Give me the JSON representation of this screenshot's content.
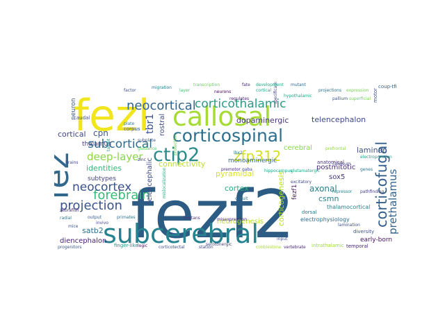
{
  "word_cloud": {
    "words": [
      {
        "text": "fezf2",
        "color": "#2c5c83"
      },
      {
        "text": "fezl",
        "color": "#f1e51d"
      },
      {
        "text": "fez",
        "color": "#31688e"
      },
      {
        "text": "subcerebral",
        "color": "#26828e"
      },
      {
        "text": "callosal",
        "color": "#a6db35"
      },
      {
        "text": "corticospinal",
        "color": "#2d6f8e"
      },
      {
        "text": "ctip2",
        "color": "#2c8a8b"
      },
      {
        "text": "corticothalamic",
        "color": "#2a9a86"
      },
      {
        "text": "neocortical",
        "color": "#32658d"
      },
      {
        "text": "corticofugal",
        "color": "#345f8d"
      },
      {
        "text": "zfp312",
        "color": "#d1e11c"
      },
      {
        "text": "subcortical",
        "color": "#2f6b8e"
      },
      {
        "text": "forebrain",
        "color": "#38b977"
      },
      {
        "text": "projection",
        "color": "#3a538b"
      },
      {
        "text": "neocortex",
        "color": "#3b518b"
      },
      {
        "text": "deep-layer",
        "color": "#8bd646"
      },
      {
        "text": "prethalamus",
        "color": "#33638d"
      },
      {
        "text": "tbr1",
        "color": "#3b528b"
      },
      {
        "text": "rostral",
        "color": "#3e4a89"
      },
      {
        "text": "telencephalon",
        "color": "#3e4989"
      },
      {
        "text": "dopaminergic",
        "color": "#46327e"
      },
      {
        "text": "cortical",
        "color": "#3f4788"
      },
      {
        "text": "cpn",
        "color": "#39558c"
      },
      {
        "text": "identities",
        "color": "#35b779"
      },
      {
        "text": "connectivity",
        "color": "#bade28"
      },
      {
        "text": "pyramidal",
        "color": "#d8e219"
      },
      {
        "text": "laminar",
        "color": "#3b528b"
      },
      {
        "text": "cerebral",
        "color": "#89d548"
      },
      {
        "text": "axonal",
        "color": "#27808e"
      },
      {
        "text": "cortex",
        "color": "#29af7f"
      },
      {
        "text": "corticogenesis",
        "color": "#b5de2b"
      },
      {
        "text": "monoaminergic",
        "color": "#31688e"
      },
      {
        "text": "postmitotic",
        "color": "#472d7b"
      },
      {
        "text": "fezf1",
        "color": "#48186a"
      },
      {
        "text": "telencephalic",
        "color": "#3e4a89"
      },
      {
        "text": "neurogenesis",
        "color": "#b8de29"
      },
      {
        "text": "csmn",
        "color": "#277f8e"
      },
      {
        "text": "sox5",
        "color": "#443983"
      },
      {
        "text": "satb2",
        "color": "#2c728e"
      },
      {
        "text": "diencephalon",
        "color": "#482173"
      },
      {
        "text": "early-born",
        "color": "#471164"
      },
      {
        "text": "neuron",
        "color": "#3a548c"
      },
      {
        "text": "thalamus",
        "color": "#433e85"
      },
      {
        "text": "subtypes",
        "color": "#414487"
      },
      {
        "text": "caudal",
        "color": "#404688"
      },
      {
        "text": "corpus",
        "color": "#3c4f8a"
      },
      {
        "text": "subplate",
        "color": "#3b518b"
      },
      {
        "text": "protection",
        "color": "#6ccd5a"
      },
      {
        "text": "plate",
        "color": "#2a788e"
      },
      {
        "text": "glutamatergic",
        "color": "#22a884"
      },
      {
        "text": "circuit",
        "color": "#2d708e"
      },
      {
        "text": "thalamocortical",
        "color": "#277f8e"
      },
      {
        "text": "electrophysiology",
        "color": "#306a8e"
      },
      {
        "text": "anatomical",
        "color": "#46337f"
      },
      {
        "text": "lamination",
        "color": "#3e4c8a"
      },
      {
        "text": "callosum",
        "color": "#433d84"
      },
      {
        "text": "dorsal",
        "color": "#2e6f8e"
      },
      {
        "text": "diversity",
        "color": "#3b528b"
      },
      {
        "text": "temporal",
        "color": "#482475"
      },
      {
        "text": "serotonergic",
        "color": "#404588"
      },
      {
        "text": "station",
        "color": "#3e4a89"
      },
      {
        "text": "vertebrate",
        "color": "#482878"
      },
      {
        "text": "corticotectal",
        "color": "#3d4e8a"
      },
      {
        "text": "finger-like",
        "color": "#21918c"
      },
      {
        "text": "logic",
        "color": "#440154"
      },
      {
        "text": "progenitors",
        "color": "#39568c"
      },
      {
        "text": "intrathalamic",
        "color": "#a0da39"
      },
      {
        "text": "cobblestone",
        "color": "#addc30"
      },
      {
        "text": "misexpression",
        "color": "#482878"
      },
      {
        "text": "mislocalization",
        "color": "#25ac82"
      },
      {
        "text": "lhx2",
        "color": "#2e6e8e"
      },
      {
        "text": "limitans",
        "color": "#46327e"
      },
      {
        "text": "invivo",
        "color": "#3f4889"
      },
      {
        "text": "electroporation",
        "color": "#1f9e89"
      },
      {
        "text": "output",
        "color": "#355f8d"
      },
      {
        "text": "primates",
        "color": "#2d718e"
      },
      {
        "text": "zinc",
        "color": "#443a83"
      },
      {
        "text": "mice",
        "color": "#3a548c"
      },
      {
        "text": "radial",
        "color": "#297b8e"
      },
      {
        "text": "zebrafish",
        "color": "#472f7d"
      },
      {
        "text": "brains",
        "color": "#404688"
      },
      {
        "text": "coup-tfi",
        "color": "#33638d"
      },
      {
        "text": "motor",
        "color": "#3b518b"
      },
      {
        "text": "gaba",
        "color": "#3e4989"
      },
      {
        "text": "hypothalamic",
        "color": "#20a386"
      },
      {
        "text": "excitatory",
        "color": "#3f4788"
      },
      {
        "text": "genes",
        "color": "#2a768e"
      },
      {
        "text": "premotor",
        "color": "#482576"
      },
      {
        "text": "prefrontal",
        "color": "#8fd744"
      },
      {
        "text": "hippocampus",
        "color": "#1fa188"
      },
      {
        "text": "specification",
        "color": "#414487"
      },
      {
        "text": "pallium",
        "color": "#3b528b"
      },
      {
        "text": "superficial",
        "color": "#73d056"
      },
      {
        "text": "cortical",
        "color": "#20a486"
      },
      {
        "text": "transcription",
        "color": "#6ece58"
      },
      {
        "text": "fate",
        "color": "#472c7a"
      },
      {
        "text": "development",
        "color": "#22a785"
      },
      {
        "text": "neurons",
        "color": "#440154"
      },
      {
        "text": "regulates",
        "color": "#482071"
      },
      {
        "text": "factor",
        "color": "#3b528b"
      },
      {
        "text": "migration",
        "color": "#2c738e"
      },
      {
        "text": "layer",
        "color": "#4ac16d"
      },
      {
        "text": "mutant",
        "color": "#31678e"
      },
      {
        "text": "projections",
        "color": "#2c728e"
      },
      {
        "text": "expression",
        "color": "#7ad151"
      },
      {
        "text": "target",
        "color": "#1f988b"
      },
      {
        "text": "input",
        "color": "#3a538b"
      },
      {
        "text": "repressor",
        "color": "#26828e"
      },
      {
        "text": "guidance",
        "color": "#5ec962"
      },
      {
        "text": "pathfinding",
        "color": "#433e85"
      }
    ]
  }
}
